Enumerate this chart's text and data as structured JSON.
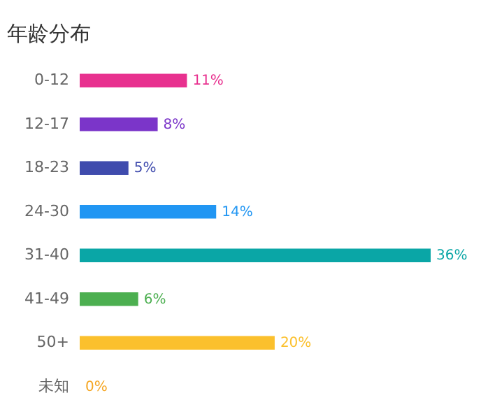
{
  "chart_data": {
    "type": "bar",
    "title": "年龄分布",
    "orientation": "horizontal",
    "categories": [
      "0-12",
      "12-17",
      "18-23",
      "24-30",
      "31-40",
      "41-49",
      "50+",
      "未知"
    ],
    "values": [
      11,
      8,
      5,
      14,
      36,
      6,
      20,
      0
    ],
    "value_labels": [
      "11%",
      "8%",
      "5%",
      "14%",
      "36%",
      "6%",
      "20%",
      "0%"
    ],
    "colors": [
      "#e8318f",
      "#7b35c9",
      "#3f4bad",
      "#2196f3",
      "#0aa6a6",
      "#4caf50",
      "#fbc02d",
      "#f5a623"
    ],
    "legend": false
  }
}
